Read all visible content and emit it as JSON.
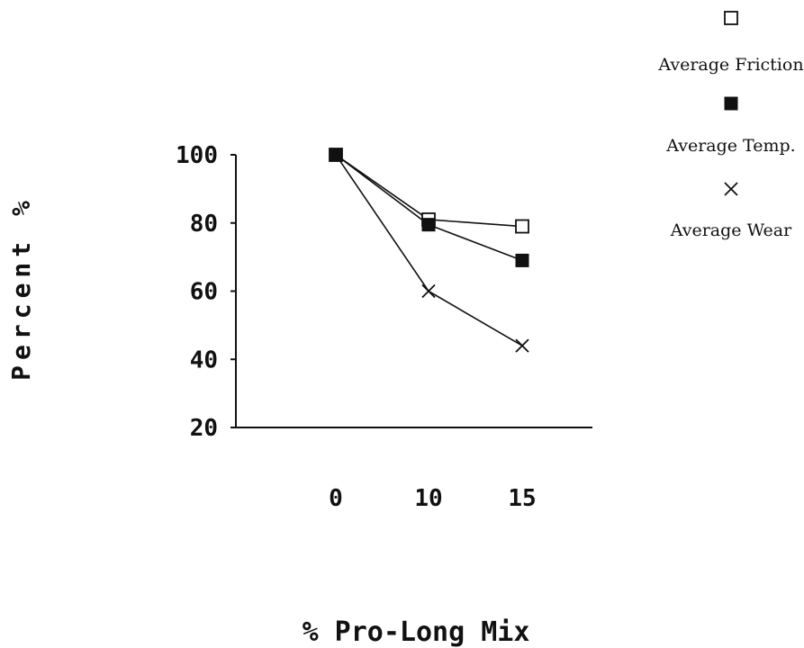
{
  "chart_data": {
    "type": "line",
    "title": "",
    "xlabel": "% Pro-Long Mix",
    "ylabel": "Percent %",
    "categories": [
      "0",
      "10",
      "15"
    ],
    "x_ticks": [
      "0",
      "10",
      "15"
    ],
    "y_ticks": [
      "100",
      "80",
      "60",
      "40",
      "20"
    ],
    "ylim": [
      20,
      100
    ],
    "grid": false,
    "legend_position": "top-right",
    "series": [
      {
        "name": "Average Friction",
        "marker": "open-square",
        "values": [
          100,
          81,
          79
        ]
      },
      {
        "name": "Average Temp.",
        "marker": "filled-square",
        "values": [
          100,
          79.5,
          69
        ]
      },
      {
        "name": "Average Wear",
        "marker": "x",
        "values": [
          100,
          60,
          44
        ]
      }
    ],
    "colors": {
      "line": "#111111",
      "background": "#ffffff"
    }
  }
}
